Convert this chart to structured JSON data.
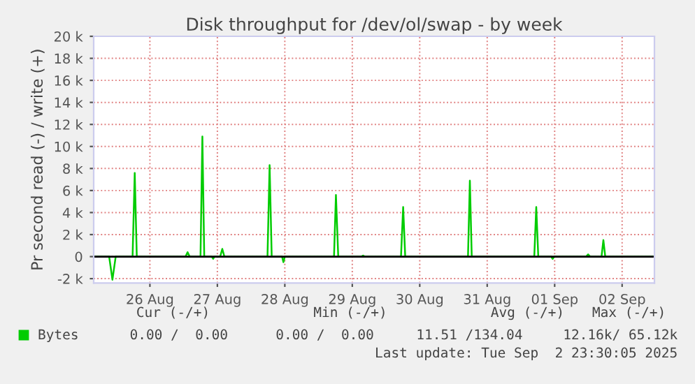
{
  "chart_data": {
    "type": "line",
    "title": "Disk throughput for /dev/ol/swap - by week",
    "ylabel": "Pr second read (-) / write (+)",
    "x": [
      "2025-08-25T16:00",
      "2025-08-25T21:30",
      "2025-08-25T22:40",
      "2025-08-25T23:50",
      "2025-08-26T05:50",
      "2025-08-26T06:36",
      "2025-08-26T07:20",
      "2025-08-27T00:40",
      "2025-08-27T01:24",
      "2025-08-27T02:10",
      "2025-08-27T06:00",
      "2025-08-27T06:40",
      "2025-08-27T07:20",
      "2025-08-27T10:00",
      "2025-08-27T10:30",
      "2025-08-27T11:00",
      "2025-08-27T13:00",
      "2025-08-27T13:45",
      "2025-08-27T14:30",
      "2025-08-28T05:50",
      "2025-08-28T06:35",
      "2025-08-28T07:20",
      "2025-08-28T11:00",
      "2025-08-28T11:30",
      "2025-08-28T12:00",
      "2025-08-29T05:30",
      "2025-08-29T06:11",
      "2025-08-29T07:00",
      "2025-08-29T15:10",
      "2025-08-29T15:50",
      "2025-08-29T16:30",
      "2025-08-30T05:20",
      "2025-08-30T06:06",
      "2025-08-30T06:50",
      "2025-08-31T05:10",
      "2025-08-31T05:50",
      "2025-08-31T06:30",
      "2025-09-01T04:45",
      "2025-09-01T05:27",
      "2025-09-01T06:10",
      "2025-09-01T10:45",
      "2025-09-01T11:17",
      "2025-09-01T11:50",
      "2025-09-01T23:10",
      "2025-09-01T23:54",
      "2025-09-02T00:40",
      "2025-09-02T04:40",
      "2025-09-02T05:20",
      "2025-09-02T06:00",
      "2025-09-02T23:30"
    ],
    "series": [
      {
        "name": "Bytes",
        "color": "#00cc00",
        "values": [
          0,
          0,
          -2100,
          0,
          0,
          7600,
          0,
          0,
          400,
          0,
          0,
          10900,
          0,
          0,
          -200,
          0,
          0,
          700,
          0,
          0,
          8300,
          0,
          0,
          -500,
          0,
          0,
          5600,
          0,
          0,
          100,
          0,
          0,
          4500,
          0,
          0,
          6900,
          0,
          0,
          4500,
          0,
          0,
          -200,
          0,
          0,
          200,
          0,
          0,
          1500,
          0,
          0
        ]
      }
    ],
    "xlim": [
      "2025-08-25T16:00",
      "2025-09-02T23:30"
    ],
    "xticks": [
      {
        "value": "2025-08-26T12:00",
        "label": "26 Aug"
      },
      {
        "value": "2025-08-27T12:00",
        "label": "27 Aug"
      },
      {
        "value": "2025-08-28T12:00",
        "label": "28 Aug"
      },
      {
        "value": "2025-08-29T12:00",
        "label": "29 Aug"
      },
      {
        "value": "2025-08-30T12:00",
        "label": "30 Aug"
      },
      {
        "value": "2025-08-31T12:00",
        "label": "31 Aug"
      },
      {
        "value": "2025-09-01T12:00",
        "label": "01 Sep"
      },
      {
        "value": "2025-09-02T12:00",
        "label": "02 Sep"
      }
    ],
    "ylim": [
      -2400,
      20000
    ],
    "yticks": [
      {
        "value": -2000,
        "label": "-2 k"
      },
      0,
      {
        "value": 2000,
        "label": "2 k"
      },
      {
        "value": 4000,
        "label": "4 k"
      },
      {
        "value": 6000,
        "label": "6 k"
      },
      {
        "value": 8000,
        "label": "8 k"
      },
      {
        "value": 10000,
        "label": "10 k"
      },
      {
        "value": 12000,
        "label": "12 k"
      },
      {
        "value": 14000,
        "label": "14 k"
      },
      {
        "value": 16000,
        "label": "16 k"
      },
      {
        "value": 18000,
        "label": "18 k"
      },
      {
        "value": 20000,
        "label": "20 k"
      }
    ],
    "ref_lines": [
      {
        "axis": "y",
        "value": 0,
        "color": "#000000"
      }
    ],
    "grid": true,
    "legend": "bottom",
    "marker": "none",
    "line_style": "solid",
    "annotations": [
      "Cur (-/+)",
      "Min (-/+)",
      "Avg (-/+)",
      "Max (-/+)",
      "0.00 /  0.00",
      "0.00 /  0.00",
      "11.51 /134.04",
      "12.16k/ 65.12k",
      "Last update: Tue Sep  2 23:30:05 2025"
    ]
  }
}
